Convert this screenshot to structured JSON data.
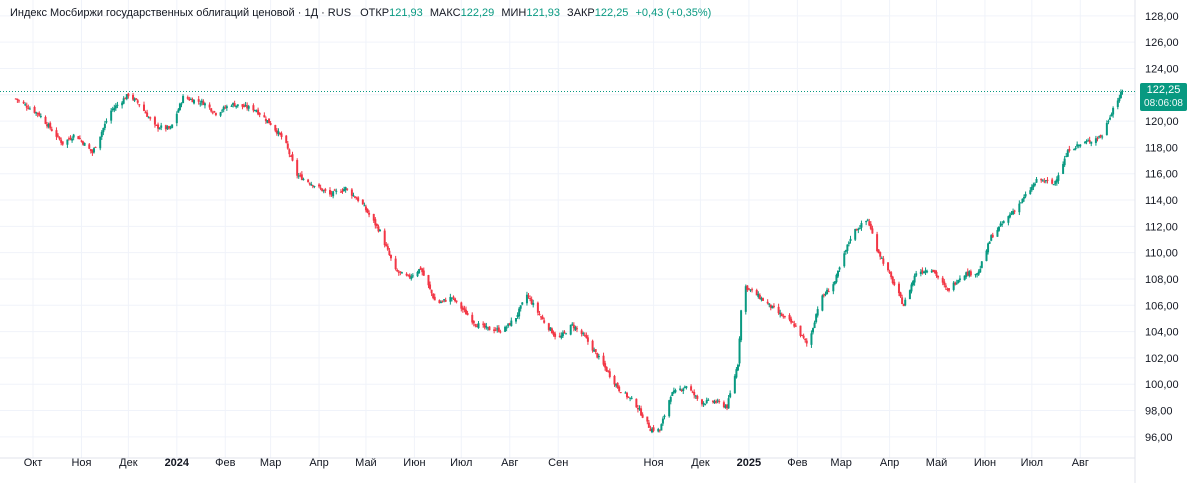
{
  "header": {
    "title": "Индекс Мосбиржи государственных облигаций ценовой · 1Д · RUS",
    "open_label": "ОТКР",
    "open": "121,93",
    "high_label": "МАКС",
    "high": "122,29",
    "low_label": "МИН",
    "low": "121,93",
    "close_label": "ЗАКР",
    "close": "122,25",
    "change": "+0,43 (+0,35%)"
  },
  "last_price": {
    "value": "122,25",
    "time": "08:06:08"
  },
  "colors": {
    "up": "#089981",
    "down": "#f23645",
    "grid": "#f0f3fa",
    "text": "#131722",
    "axis_text": "#131722"
  },
  "chart_data": {
    "type": "line",
    "y_axis_ticks": [
      "96,00",
      "98,00",
      "100,00",
      "102,00",
      "104,00",
      "106,00",
      "108,00",
      "110,00",
      "112,00",
      "114,00",
      "116,00",
      "118,00",
      "120,00",
      "122,00",
      "124,00",
      "126,00",
      "128,00"
    ],
    "ylim": [
      95.0,
      128.9
    ],
    "x_axis_ticks": [
      {
        "label": "Окт",
        "bold": false
      },
      {
        "label": "Ноя",
        "bold": false
      },
      {
        "label": "Дек",
        "bold": false
      },
      {
        "label": "2024",
        "bold": true
      },
      {
        "label": "Фев",
        "bold": false
      },
      {
        "label": "Мар",
        "bold": false
      },
      {
        "label": "Апр",
        "bold": false
      },
      {
        "label": "Май",
        "bold": false
      },
      {
        "label": "Июн",
        "bold": false
      },
      {
        "label": "Июл",
        "bold": false
      },
      {
        "label": "Авг",
        "bold": false
      },
      {
        "label": "Сен",
        "bold": false
      },
      {
        "label": "Ноя",
        "bold": false
      },
      {
        "label": "Дек",
        "bold": false
      },
      {
        "label": "2025",
        "bold": true
      },
      {
        "label": "Фев",
        "bold": false
      },
      {
        "label": "Мар",
        "bold": false
      },
      {
        "label": "Апр",
        "bold": false
      },
      {
        "label": "Май",
        "bold": false
      },
      {
        "label": "Июн",
        "bold": false
      },
      {
        "label": "Июл",
        "bold": false
      },
      {
        "label": "Авг",
        "bold": false
      }
    ],
    "x_tick_dates": [
      "2023-10-01",
      "2023-11-01",
      "2023-12-01",
      "2024-01-01",
      "2024-02-01",
      "2024-03-01",
      "2024-04-01",
      "2024-05-01",
      "2024-06-01",
      "2024-07-01",
      "2024-08-01",
      "2024-09-01",
      "2024-11-01",
      "2024-12-01",
      "2025-01-01",
      "2025-02-01",
      "2025-03-01",
      "2025-04-01",
      "2025-05-01",
      "2025-06-01",
      "2025-07-01",
      "2025-08-01"
    ],
    "close_series": [
      [
        "2023-09-20",
        121.7
      ],
      [
        "2023-10-05",
        120.5
      ],
      [
        "2023-10-20",
        118.3
      ],
      [
        "2023-10-28",
        119.0
      ],
      [
        "2023-11-08",
        117.6
      ],
      [
        "2023-11-20",
        120.8
      ],
      [
        "2023-12-01",
        122.0
      ],
      [
        "2023-12-08",
        121.3
      ],
      [
        "2023-12-18",
        119.6
      ],
      [
        "2023-12-28",
        119.4
      ],
      [
        "2024-01-05",
        121.8
      ],
      [
        "2024-01-18",
        121.4
      ],
      [
        "2024-01-26",
        120.6
      ],
      [
        "2024-02-05",
        121.3
      ],
      [
        "2024-02-20",
        120.9
      ],
      [
        "2024-03-01",
        119.8
      ],
      [
        "2024-03-10",
        118.5
      ],
      [
        "2024-03-18",
        115.9
      ],
      [
        "2024-03-28",
        115.2
      ],
      [
        "2024-04-08",
        114.4
      ],
      [
        "2024-04-18",
        114.9
      ],
      [
        "2024-04-28",
        113.8
      ],
      [
        "2024-05-10",
        111.6
      ],
      [
        "2024-05-20",
        108.6
      ],
      [
        "2024-05-28",
        108.1
      ],
      [
        "2024-06-05",
        108.8
      ],
      [
        "2024-06-15",
        106.1
      ],
      [
        "2024-06-25",
        106.6
      ],
      [
        "2024-07-10",
        104.6
      ],
      [
        "2024-07-18",
        104.2
      ],
      [
        "2024-07-28",
        104.1
      ],
      [
        "2024-08-05",
        105.1
      ],
      [
        "2024-08-12",
        106.8
      ],
      [
        "2024-08-22",
        104.9
      ],
      [
        "2024-09-01",
        103.4
      ],
      [
        "2024-09-10",
        104.5
      ],
      [
        "2024-09-18",
        103.6
      ],
      [
        "2024-09-28",
        101.8
      ],
      [
        "2024-10-10",
        99.6
      ],
      [
        "2024-10-20",
        98.6
      ],
      [
        "2024-10-30",
        96.6
      ],
      [
        "2024-11-05",
        96.5
      ],
      [
        "2024-11-12",
        99.2
      ],
      [
        "2024-11-22",
        99.9
      ],
      [
        "2024-12-01",
        98.6
      ],
      [
        "2024-12-10",
        98.7
      ],
      [
        "2024-12-18",
        98.3
      ],
      [
        "2024-12-25",
        101.6
      ],
      [
        "2024-12-28",
        107.6
      ],
      [
        "2025-01-08",
        106.6
      ],
      [
        "2025-01-20",
        105.4
      ],
      [
        "2025-01-30",
        104.5
      ],
      [
        "2025-02-08",
        102.9
      ],
      [
        "2025-02-15",
        106.3
      ],
      [
        "2025-02-25",
        107.8
      ],
      [
        "2025-03-08",
        111.5
      ],
      [
        "2025-03-18",
        112.5
      ],
      [
        "2025-03-24",
        110.3
      ],
      [
        "2025-04-03",
        107.8
      ],
      [
        "2025-04-10",
        106.0
      ],
      [
        "2025-04-18",
        108.5
      ],
      [
        "2025-04-28",
        108.8
      ],
      [
        "2025-05-08",
        107.1
      ],
      [
        "2025-05-18",
        108.4
      ],
      [
        "2025-05-28",
        108.5
      ],
      [
        "2025-06-05",
        111.2
      ],
      [
        "2025-06-15",
        112.6
      ],
      [
        "2025-06-25",
        114.0
      ],
      [
        "2025-07-05",
        115.6
      ],
      [
        "2025-07-15",
        115.2
      ],
      [
        "2025-07-25",
        117.9
      ],
      [
        "2025-08-05",
        118.4
      ],
      [
        "2025-08-15",
        118.9
      ],
      [
        "2025-08-22",
        121.0
      ],
      [
        "2025-08-28",
        122.25
      ]
    ],
    "last_value": 122.25
  }
}
